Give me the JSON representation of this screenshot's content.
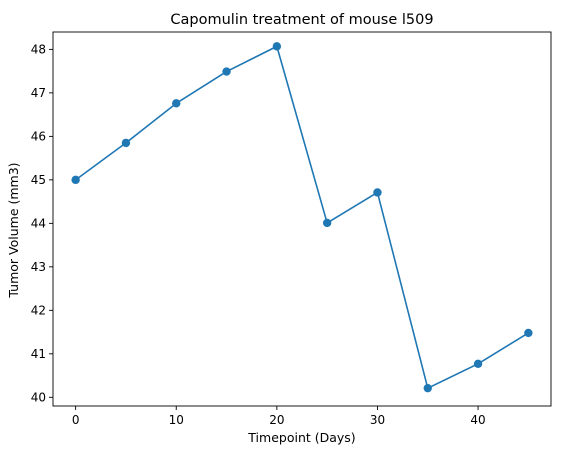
{
  "chart_data": {
    "type": "line",
    "title": "Capomulin treatment of mouse l509",
    "xlabel": "Timepoint (Days)",
    "ylabel": "Tumor Volume (mm3)",
    "xlim": [
      -2.25,
      47.25
    ],
    "ylim": [
      39.8,
      48.4
    ],
    "xticks": [
      0,
      10,
      20,
      30,
      40
    ],
    "yticks": [
      40,
      41,
      42,
      43,
      44,
      45,
      46,
      47,
      48
    ],
    "grid": false,
    "legend": "none",
    "series": [
      {
        "color": "#1f77b4",
        "marker": "circle",
        "x": [
          0,
          5,
          10,
          15,
          20,
          25,
          30,
          35,
          40,
          45
        ],
        "y": [
          45.0,
          45.85,
          46.76,
          47.49,
          48.07,
          44.01,
          44.71,
          40.21,
          40.77,
          41.48
        ]
      }
    ]
  }
}
